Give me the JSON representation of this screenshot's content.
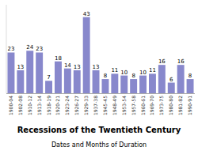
{
  "chart_data": {
    "type": "bar",
    "title": "Recessions of the Twentieth Century",
    "subtitle": "Dates and Months of Duration",
    "categories": [
      "1900-04",
      "1902-08",
      "1910-12",
      "1913-14",
      "1918-19",
      "1920-21",
      "1923-24",
      "1926-27",
      "1929-33",
      "1937-38",
      "1945-45",
      "1948-49",
      "1953-54",
      "1957-58",
      "1960-61",
      "1969-70",
      "1973-75",
      "1980-80",
      "1981-82",
      "1990-91"
    ],
    "values": [
      23,
      13,
      24,
      23,
      7,
      18,
      14,
      13,
      43,
      13,
      8,
      11,
      10,
      8,
      10,
      11,
      16,
      6,
      16,
      8
    ],
    "color": "#8888cc",
    "ylim": [
      0,
      50
    ],
    "data_labels": true,
    "tick_labels": "x"
  }
}
